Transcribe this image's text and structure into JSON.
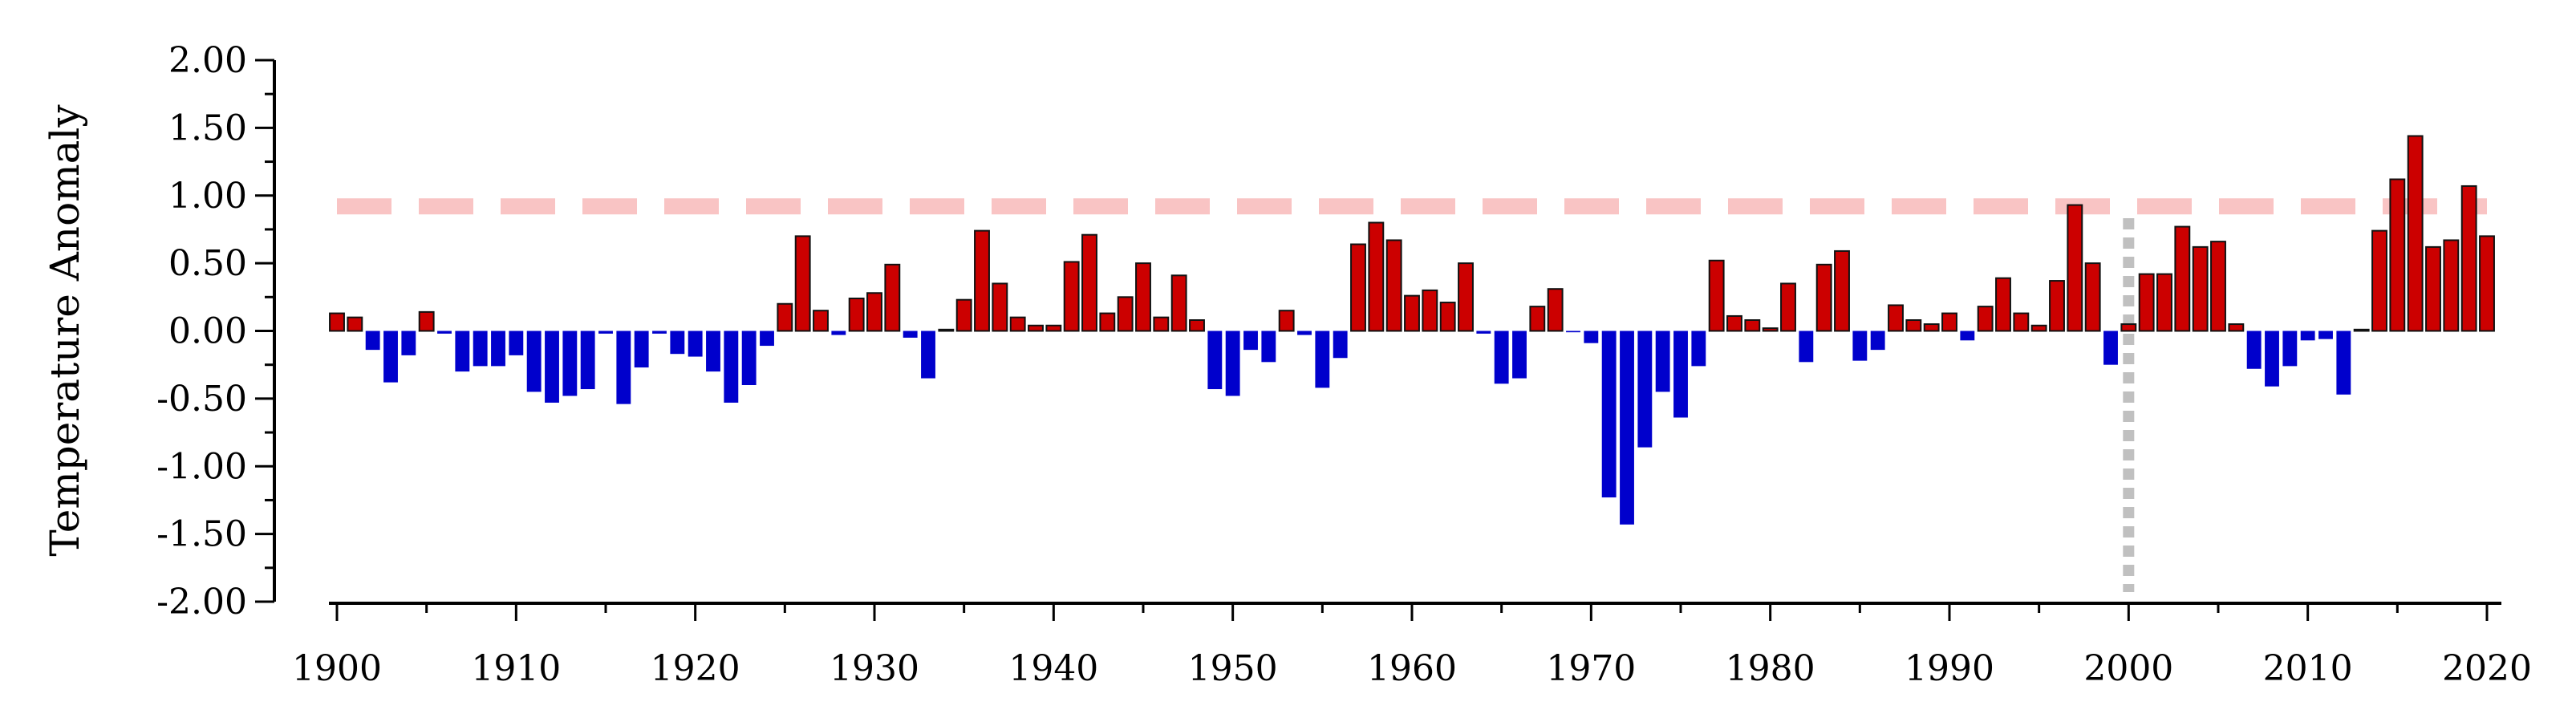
{
  "chart_data": {
    "type": "bar",
    "title": "",
    "xlabel": "",
    "ylabel": "Temperature Anomaly",
    "xlim": [
      1900,
      2020
    ],
    "ylim": [
      -2.0,
      2.0
    ],
    "y_ticks": [
      "-2.00",
      "-1.50",
      "-1.00",
      "-0.50",
      "0.00",
      "0.50",
      "1.00",
      "1.50",
      "2.00"
    ],
    "x_ticks": [
      "1900",
      "1910",
      "1920",
      "1930",
      "1940",
      "1950",
      "1960",
      "1970",
      "1980",
      "1990",
      "2000",
      "2010",
      "2020"
    ],
    "grid": false,
    "legend": "none",
    "colors": {
      "positive": "#cc0000",
      "negative": "#0000cc",
      "threshold_line": "#f9c4c4",
      "reference_line": "#c0c0c0"
    },
    "threshold_y": 0.92,
    "reference_x": 2000,
    "x": [
      1900,
      1901,
      1902,
      1903,
      1904,
      1905,
      1906,
      1907,
      1908,
      1909,
      1910,
      1911,
      1912,
      1913,
      1914,
      1915,
      1916,
      1917,
      1918,
      1919,
      1920,
      1921,
      1922,
      1923,
      1924,
      1925,
      1926,
      1927,
      1928,
      1929,
      1930,
      1931,
      1932,
      1933,
      1934,
      1935,
      1936,
      1937,
      1938,
      1939,
      1940,
      1941,
      1942,
      1943,
      1944,
      1945,
      1946,
      1947,
      1948,
      1949,
      1950,
      1951,
      1952,
      1953,
      1954,
      1955,
      1956,
      1957,
      1958,
      1959,
      1960,
      1961,
      1962,
      1963,
      1964,
      1965,
      1966,
      1967,
      1968,
      1969,
      1970,
      1971,
      1972,
      1973,
      1974,
      1975,
      1976,
      1977,
      1978,
      1979,
      1980,
      1981,
      1982,
      1983,
      1984,
      1985,
      1986,
      1987,
      1988,
      1989,
      1990,
      1991,
      1992,
      1993,
      1994,
      1995,
      1996,
      1997,
      1998,
      1999,
      2000,
      2001,
      2002,
      2003,
      2004,
      2005,
      2006,
      2007,
      2008,
      2009,
      2010,
      2011,
      2012,
      2013,
      2014,
      2015,
      2016,
      2017,
      2018,
      2019,
      2020
    ],
    "values": [
      0.13,
      0.1,
      -0.14,
      -0.38,
      -0.18,
      0.14,
      -0.02,
      -0.3,
      -0.26,
      -0.26,
      -0.18,
      -0.45,
      -0.53,
      -0.48,
      -0.43,
      -0.02,
      -0.54,
      -0.27,
      -0.02,
      -0.17,
      -0.19,
      -0.3,
      -0.53,
      -0.4,
      -0.11,
      0.2,
      0.7,
      0.15,
      -0.03,
      0.24,
      0.28,
      0.49,
      -0.05,
      -0.35,
      0.01,
      0.23,
      0.74,
      0.35,
      0.1,
      0.04,
      0.04,
      0.51,
      0.71,
      0.13,
      0.25,
      0.5,
      0.1,
      0.41,
      0.08,
      -0.43,
      -0.48,
      -0.14,
      -0.23,
      0.15,
      -0.03,
      -0.42,
      -0.2,
      0.64,
      0.8,
      0.67,
      0.26,
      0.3,
      0.21,
      0.5,
      -0.02,
      -0.39,
      -0.35,
      0.18,
      0.31,
      -0.01,
      -0.09,
      -1.23,
      -1.43,
      -0.86,
      -0.45,
      -0.64,
      -0.26,
      0.52,
      0.11,
      0.08,
      0.02,
      0.35,
      -0.23,
      0.49,
      0.59,
      -0.22,
      -0.14,
      0.19,
      0.08,
      0.05,
      0.13,
      -0.07,
      0.18,
      0.39,
      0.13,
      0.04,
      0.37,
      0.93,
      0.5,
      -0.25,
      0.05,
      0.42,
      0.42,
      0.77,
      0.62,
      0.66,
      0.05,
      -0.28,
      -0.41,
      -0.26,
      -0.07,
      -0.06,
      -0.47,
      0.01,
      0.74,
      1.12,
      1.44,
      0.62,
      0.67,
      1.07,
      0.7
    ]
  }
}
